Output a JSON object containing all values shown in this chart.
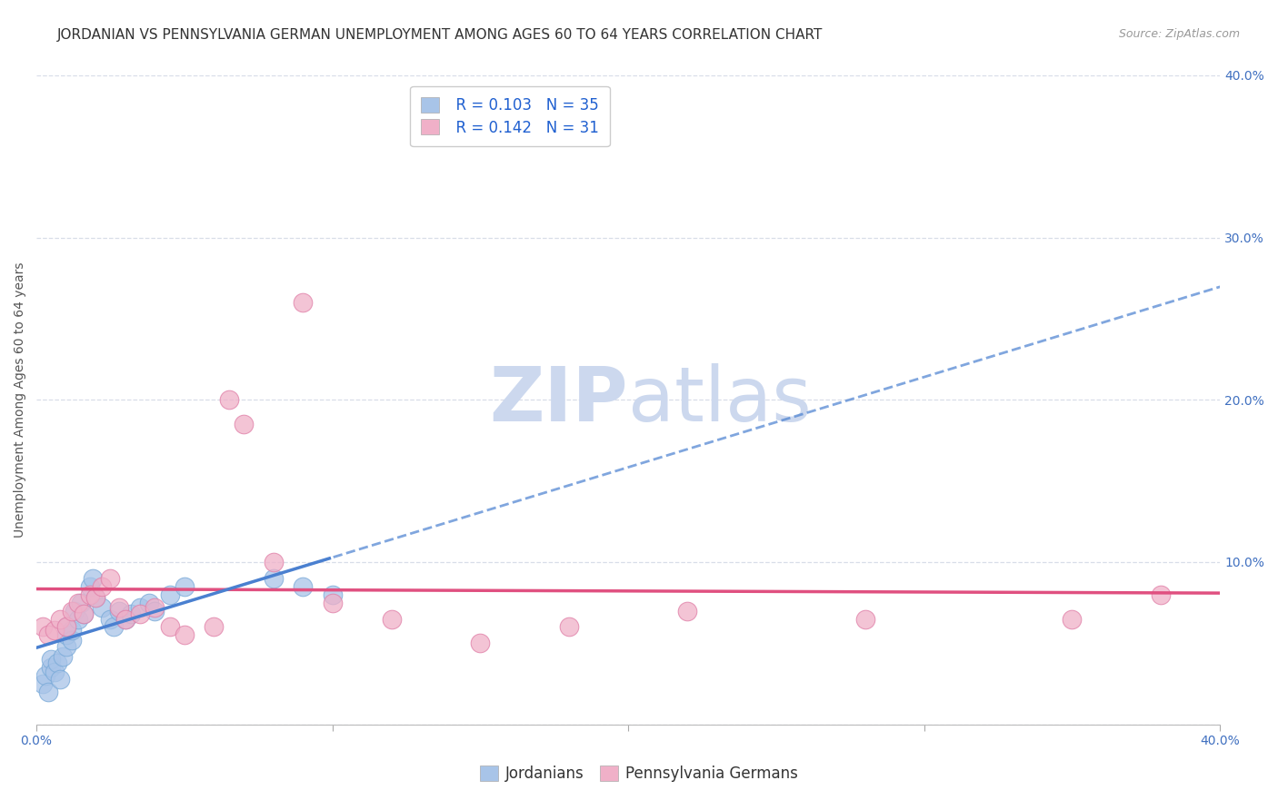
{
  "title": "JORDANIAN VS PENNSYLVANIA GERMAN UNEMPLOYMENT AMONG AGES 60 TO 64 YEARS CORRELATION CHART",
  "source": "Source: ZipAtlas.com",
  "ylabel": "Unemployment Among Ages 60 to 64 years",
  "xlim": [
    0.0,
    0.4
  ],
  "ylim": [
    0.0,
    0.4
  ],
  "jordanian_R": "0.103",
  "jordanian_N": "35",
  "penn_german_R": "0.142",
  "penn_german_N": "31",
  "jordanian_color": "#a8c4e8",
  "jordanian_edge_color": "#7aaad8",
  "jordanian_line_color": "#4a80d0",
  "penn_german_color": "#f0b0c8",
  "penn_german_edge_color": "#e080a8",
  "penn_german_line_color": "#e05080",
  "watermark_color": "#ccd8ee",
  "legend_R_color": "#2060d0",
  "legend_N_color": "#2060d0",
  "jordanian_x": [
    0.002,
    0.003,
    0.004,
    0.005,
    0.005,
    0.006,
    0.007,
    0.008,
    0.009,
    0.01,
    0.01,
    0.01,
    0.012,
    0.012,
    0.013,
    0.014,
    0.015,
    0.016,
    0.018,
    0.019,
    0.02,
    0.022,
    0.025,
    0.026,
    0.028,
    0.03,
    0.032,
    0.035,
    0.038,
    0.04,
    0.045,
    0.05,
    0.08,
    0.09,
    0.1
  ],
  "jordanian_y": [
    0.025,
    0.03,
    0.02,
    0.035,
    0.04,
    0.032,
    0.038,
    0.028,
    0.042,
    0.048,
    0.055,
    0.06,
    0.052,
    0.058,
    0.07,
    0.065,
    0.075,
    0.068,
    0.085,
    0.09,
    0.078,
    0.072,
    0.065,
    0.06,
    0.07,
    0.065,
    0.068,
    0.072,
    0.075,
    0.07,
    0.08,
    0.085,
    0.09,
    0.085,
    0.08
  ],
  "penn_german_x": [
    0.002,
    0.004,
    0.006,
    0.008,
    0.01,
    0.012,
    0.014,
    0.016,
    0.018,
    0.02,
    0.022,
    0.025,
    0.028,
    0.03,
    0.035,
    0.04,
    0.045,
    0.05,
    0.06,
    0.065,
    0.07,
    0.08,
    0.09,
    0.1,
    0.12,
    0.15,
    0.18,
    0.22,
    0.28,
    0.35,
    0.38
  ],
  "penn_german_y": [
    0.06,
    0.055,
    0.058,
    0.065,
    0.06,
    0.07,
    0.075,
    0.068,
    0.08,
    0.078,
    0.085,
    0.09,
    0.072,
    0.065,
    0.068,
    0.072,
    0.06,
    0.055,
    0.06,
    0.2,
    0.185,
    0.1,
    0.26,
    0.075,
    0.065,
    0.05,
    0.06,
    0.07,
    0.065,
    0.065,
    0.08
  ],
  "background_color": "#ffffff",
  "grid_color": "#d8dde8",
  "title_fontsize": 11,
  "axis_label_fontsize": 10,
  "tick_label_fontsize": 10,
  "legend_fontsize": 12
}
